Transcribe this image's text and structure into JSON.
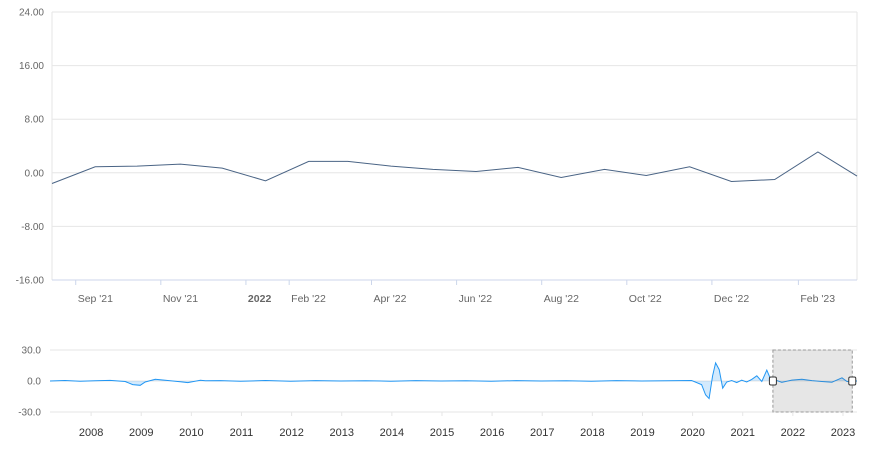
{
  "chart_data": [
    {
      "type": "line",
      "title": "",
      "xlabel": "",
      "ylabel": "",
      "ylim": [
        -16,
        24
      ],
      "y_ticks": [
        "24.00",
        "16.00",
        "8.00",
        "0.00",
        "-8.00",
        "-16.00"
      ],
      "y_tick_values": [
        24,
        16,
        8,
        0,
        -8,
        -16
      ],
      "x_ticks": [
        {
          "date": "2021-09-01",
          "label": "Sep '21",
          "bold": false
        },
        {
          "date": "2021-11-01",
          "label": "Nov '21",
          "bold": false
        },
        {
          "date": "2022-01-01",
          "label": "2022",
          "bold": true
        },
        {
          "date": "2022-02-01",
          "label": "Feb '22",
          "bold": false
        },
        {
          "date": "2022-04-01",
          "label": "Apr '22",
          "bold": false
        },
        {
          "date": "2022-06-01",
          "label": "Jun '22",
          "bold": false
        },
        {
          "date": "2022-08-01",
          "label": "Aug '22",
          "bold": false
        },
        {
          "date": "2022-10-01",
          "label": "Oct '22",
          "bold": false
        },
        {
          "date": "2022-12-01",
          "label": "Dec '22",
          "bold": false
        },
        {
          "date": "2023-02-01",
          "label": "Feb '23",
          "bold": false
        }
      ],
      "xlim": [
        "2021-08-15",
        "2023-03-15"
      ],
      "grid": true,
      "color": "#4a6485",
      "series": [
        {
          "x": [
            "2021-08-15",
            "2021-09-15",
            "2021-10-15",
            "2021-11-15",
            "2021-12-15",
            "2022-01-15",
            "2022-02-15",
            "2022-03-15",
            "2022-04-15",
            "2022-05-15",
            "2022-06-15",
            "2022-07-15",
            "2022-08-15",
            "2022-09-15",
            "2022-10-15",
            "2022-11-15",
            "2022-12-15",
            "2023-01-15",
            "2023-02-15",
            "2023-03-15"
          ],
          "y": [
            -1.6,
            0.9,
            1.0,
            1.3,
            0.7,
            -1.2,
            1.7,
            1.7,
            1.0,
            0.5,
            0.2,
            0.8,
            -0.7,
            0.5,
            -0.4,
            0.9,
            -1.3,
            -1.0,
            3.1,
            -0.5
          ]
        }
      ]
    },
    {
      "type": "area",
      "role": "navigator",
      "ylim": [
        -30,
        30
      ],
      "y_ticks": [
        "30.0",
        "0.0",
        "-30.0"
      ],
      "y_tick_values": [
        30,
        0,
        -30
      ],
      "x_ticks": [
        "2008",
        "2009",
        "2010",
        "2011",
        "2012",
        "2013",
        "2014",
        "2015",
        "2016",
        "2017",
        "2018",
        "2019",
        "2020",
        "2021",
        "2022",
        "2023"
      ],
      "xlim": [
        2007.2,
        2023.3
      ],
      "color": "#2196f3",
      "selected_range": [
        "2021-08-15",
        "2023-03-15"
      ],
      "series": [
        {
          "x": [
            2007.2,
            2007.5,
            2007.8,
            2008.1,
            2008.4,
            2008.7,
            2008.85,
            2009.0,
            2009.1,
            2009.3,
            2009.6,
            2009.8,
            2009.95,
            2010.2,
            2010.3,
            2010.6,
            2011.0,
            2011.5,
            2012.0,
            2012.5,
            2013.0,
            2013.5,
            2014.0,
            2014.5,
            2015.0,
            2015.5,
            2016.0,
            2016.5,
            2017.0,
            2017.5,
            2018.0,
            2018.5,
            2019.0,
            2019.5,
            2020.0,
            2020.2,
            2020.28,
            2020.35,
            2020.42,
            2020.48,
            2020.55,
            2020.62,
            2020.7,
            2020.8,
            2020.9,
            2021.0,
            2021.1,
            2021.2,
            2021.3,
            2021.4,
            2021.5,
            2021.6,
            2021.7,
            2021.8,
            2022.0,
            2022.2,
            2022.4,
            2022.6,
            2022.8,
            2023.0,
            2023.1,
            2023.3
          ],
          "y": [
            0,
            0.5,
            -0.3,
            0.2,
            0.6,
            -0.5,
            -3.5,
            -4.2,
            -1.0,
            1.6,
            0.3,
            -0.8,
            -1.5,
            0.8,
            0.2,
            0.4,
            -0.3,
            0.5,
            -0.2,
            0.4,
            0,
            0.3,
            -0.2,
            0.4,
            0,
            0.2,
            -0.3,
            0.4,
            0,
            0.2,
            -0.2,
            0.4,
            0,
            0.3,
            0.5,
            -3.5,
            -13.5,
            -17.0,
            5.0,
            17.5,
            11.0,
            -7.0,
            -1.0,
            0.5,
            -1.5,
            0.8,
            -1.0,
            1.5,
            5.0,
            -0.5,
            10.5,
            -1.0,
            0.5,
            -1.4,
            0.9,
            1.7,
            0.4,
            -0.5,
            -1.2,
            3.1,
            -0.5,
            0
          ]
        }
      ]
    }
  ]
}
